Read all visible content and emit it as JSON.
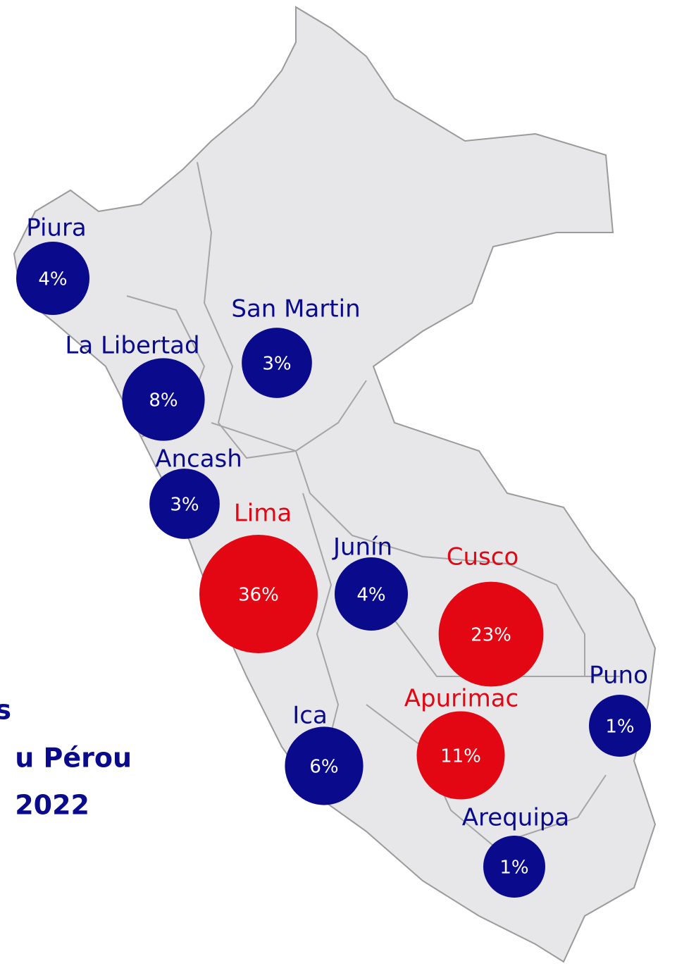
{
  "title_lines": [
    "s",
    "u Pérou",
    "2022"
  ],
  "regions": [
    {
      "name": "Piura",
      "value": 4,
      "value_label": "4%",
      "color": "#0a0a8c"
    },
    {
      "name": "San Martin",
      "value": 3,
      "value_label": "3%",
      "color": "#0a0a8c"
    },
    {
      "name": "La Libertad",
      "value": 8,
      "value_label": "8%",
      "color": "#0a0a8c"
    },
    {
      "name": "Ancash",
      "value": 3,
      "value_label": "3%",
      "color": "#0a0a8c"
    },
    {
      "name": "Lima",
      "value": 36,
      "value_label": "36%",
      "color": "#e30613"
    },
    {
      "name": "Junín",
      "value": 4,
      "value_label": "4%",
      "color": "#0a0a8c"
    },
    {
      "name": "Cusco",
      "value": 23,
      "value_label": "23%",
      "color": "#e30613"
    },
    {
      "name": "Puno",
      "value": 1,
      "value_label": "1%",
      "color": "#0a0a8c"
    },
    {
      "name": "Ica",
      "value": 6,
      "value_label": "6%",
      "color": "#0a0a8c"
    },
    {
      "name": "Apurimac",
      "value": 11,
      "value_label": "11%",
      "color": "#e30613"
    },
    {
      "name": "Arequipa",
      "value": 1,
      "value_label": "1%",
      "color": "#0a0a8c"
    }
  ]
}
